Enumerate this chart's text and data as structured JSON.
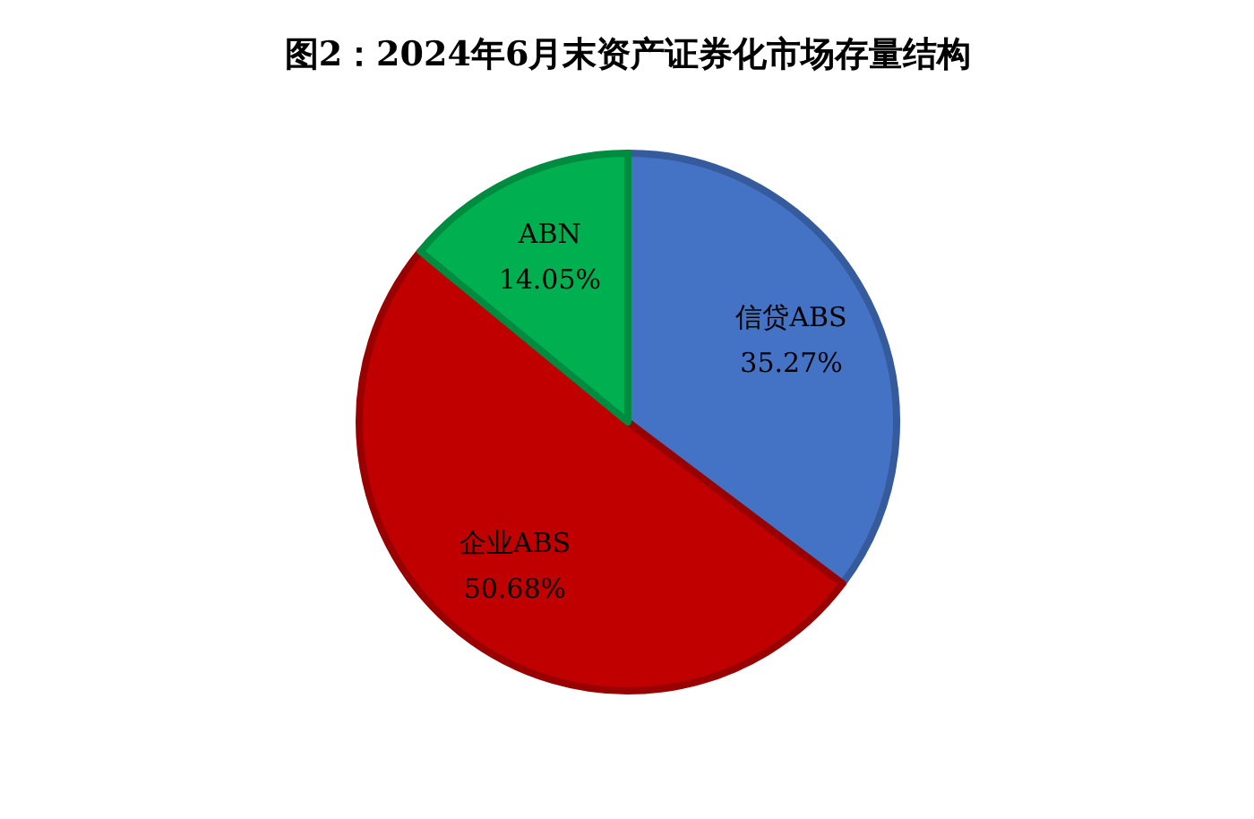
{
  "chart_data": {
    "type": "pie",
    "title": "图2：2024年6月末资产证券化市场存量结构",
    "categories": [
      "信贷ABS",
      "企业ABS",
      "ABN"
    ],
    "values": [
      35.27,
      50.68,
      14.05
    ],
    "value_labels": [
      "35.27%",
      "50.68%",
      "14.05%"
    ],
    "colors": [
      "#4472c4",
      "#c00000",
      "#00b050"
    ]
  }
}
